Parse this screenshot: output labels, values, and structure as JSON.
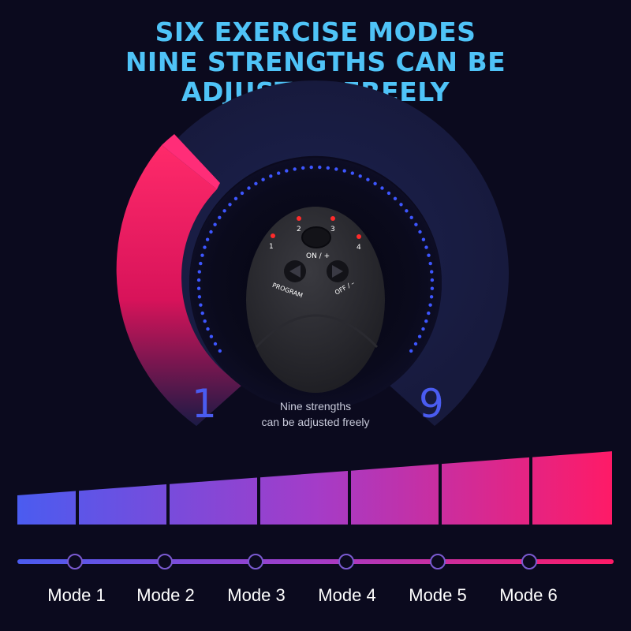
{
  "headline": {
    "line1": "SIX EXERCISE MODES",
    "line2": "NINE STRENGTHS CAN BE",
    "line3": "ADJUSTED FREELY"
  },
  "gauge": {
    "min_label": "1",
    "max_label": "9",
    "caption_line1": "Nine strengths",
    "caption_line2": "can be adjusted freely"
  },
  "device": {
    "indicator_labels": [
      "1",
      "2",
      "3",
      "4"
    ],
    "on_label": "ON / +",
    "off_label": "OFF / –",
    "program_label": "PROGRAM"
  },
  "modes": [
    "Mode 1",
    "Mode 2",
    "Mode 3",
    "Mode 4",
    "Mode 5",
    "Mode 6"
  ],
  "colors": {
    "headline": "#4fc3f7",
    "gradient_start": "#4a5cf0",
    "gradient_end": "#ff1a66",
    "led_red": "#ff2b2b",
    "dot_blue": "#3d56ff"
  }
}
